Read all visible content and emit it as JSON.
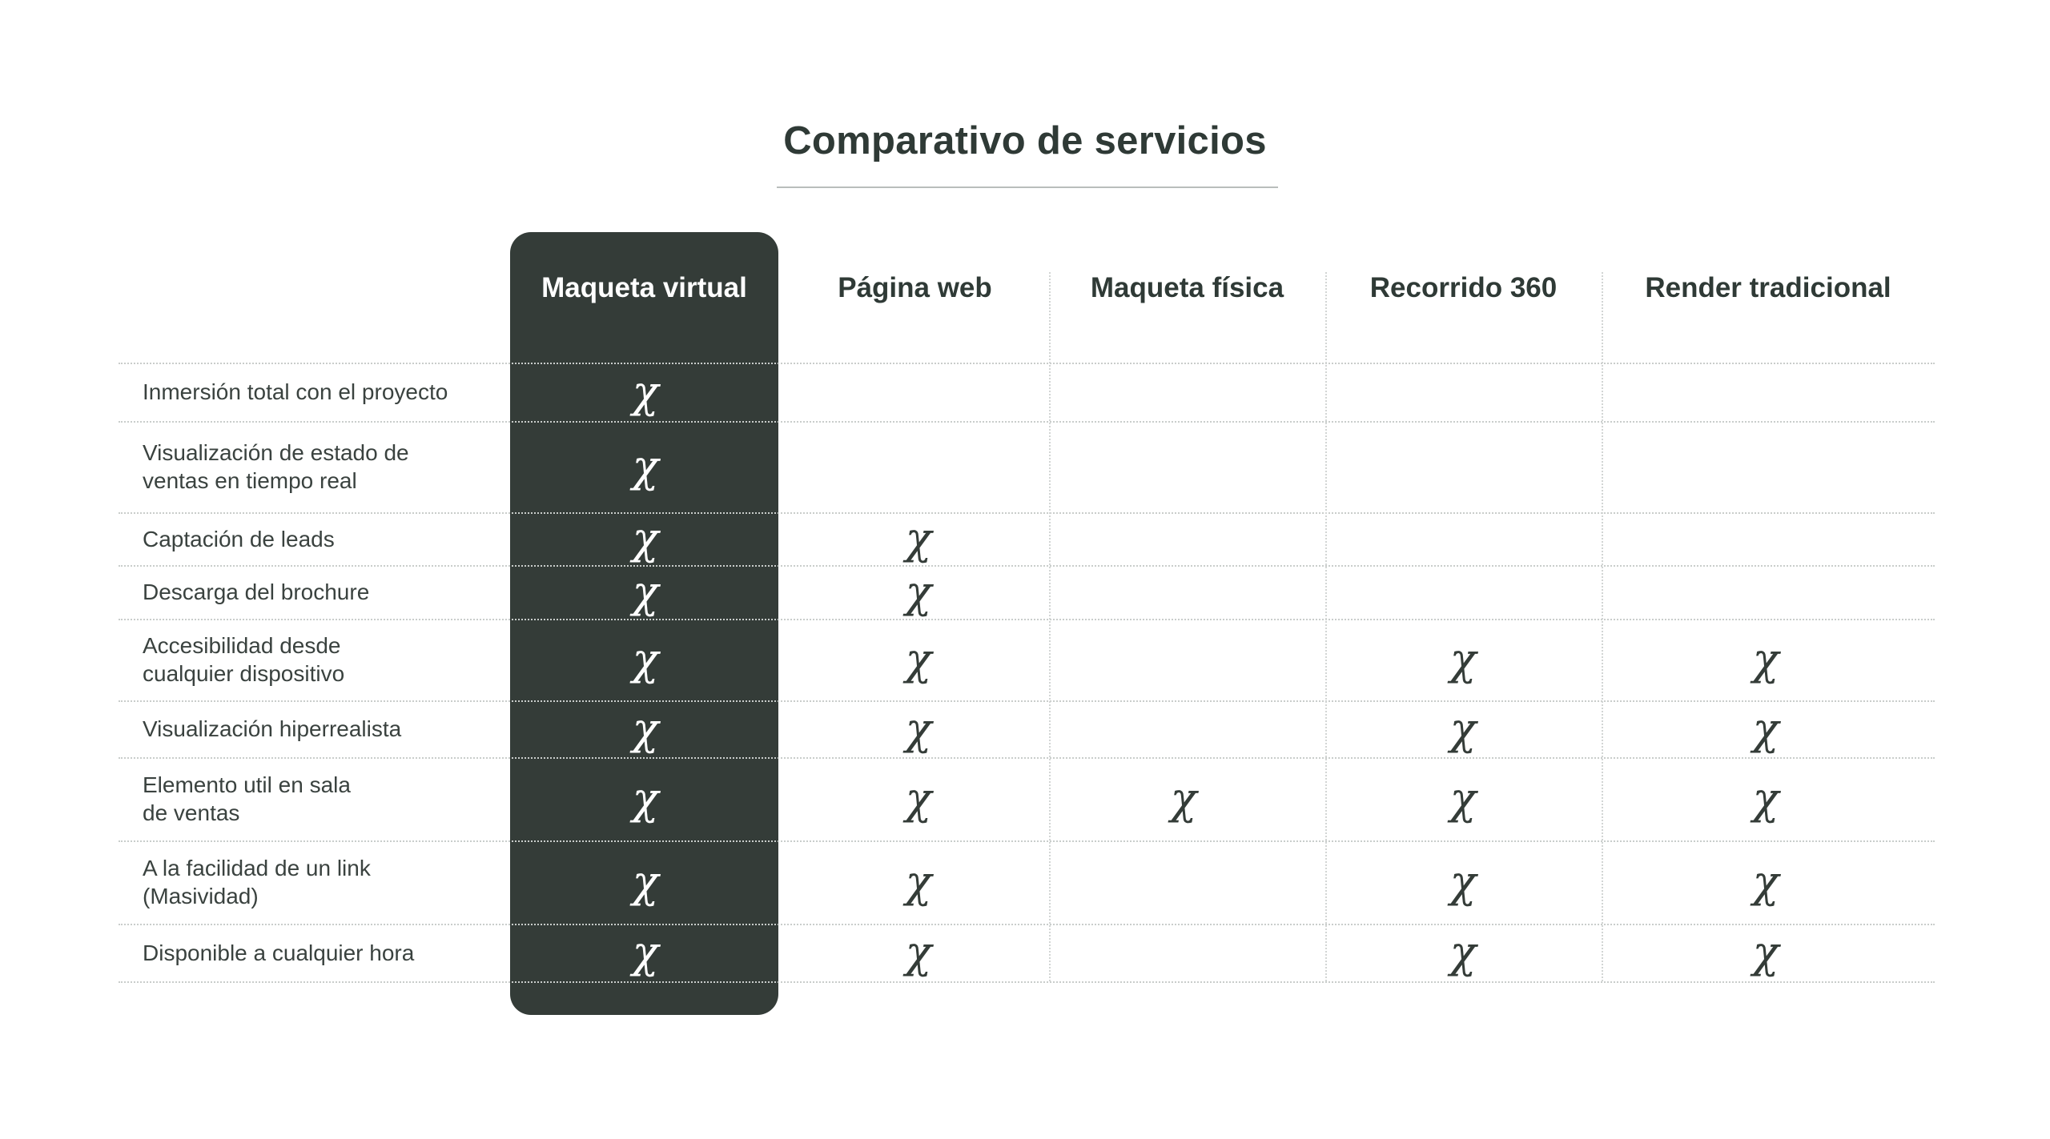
{
  "title": "Comparativo de servicios",
  "mark_glyph": "χ",
  "columns": [
    {
      "label": "Maqueta virtual",
      "highlighted": true
    },
    {
      "label": "Página web",
      "highlighted": false
    },
    {
      "label": "Maqueta física",
      "highlighted": false
    },
    {
      "label": "Recorrido 360",
      "highlighted": false
    },
    {
      "label": "Render tradicional",
      "highlighted": false
    }
  ],
  "rows": [
    {
      "label": "Inmersión total con el proyecto",
      "marks": [
        true,
        false,
        false,
        false,
        false
      ]
    },
    {
      "label": "Visualización de estado de\nventas en tiempo real",
      "marks": [
        true,
        false,
        false,
        false,
        false
      ]
    },
    {
      "label": "Captación de leads",
      "marks": [
        true,
        true,
        false,
        false,
        false
      ]
    },
    {
      "label": "Descarga del brochure",
      "marks": [
        true,
        true,
        false,
        false,
        false
      ]
    },
    {
      "label": "Accesibilidad desde\ncualquier dispositivo",
      "marks": [
        true,
        true,
        false,
        true,
        true
      ]
    },
    {
      "label": "Visualización hiperrealista",
      "marks": [
        true,
        true,
        false,
        true,
        true
      ]
    },
    {
      "label": "Elemento util en sala\nde ventas",
      "marks": [
        true,
        true,
        true,
        true,
        true
      ]
    },
    {
      "label": "A la facilidad de un link\n(Masividad)",
      "marks": [
        true,
        true,
        false,
        true,
        true
      ]
    },
    {
      "label": "Disponible a cualquier hora",
      "marks": [
        true,
        true,
        false,
        true,
        true
      ]
    }
  ],
  "colors": {
    "highlight_column": "#343c38",
    "text": "#2f3a36",
    "grid": "#c9cdcb"
  }
}
